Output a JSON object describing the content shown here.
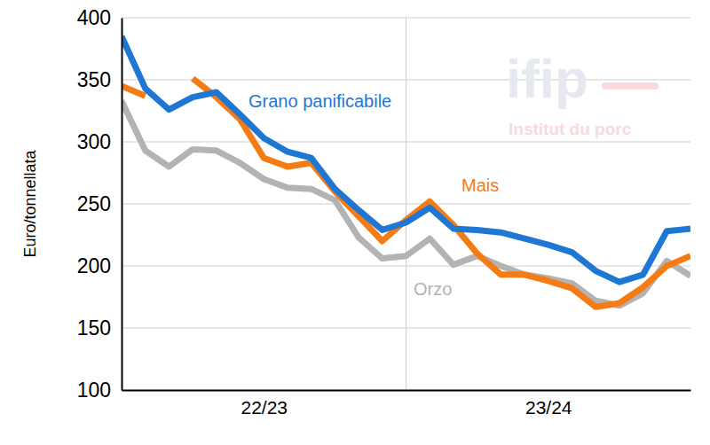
{
  "chart_data": {
    "type": "line",
    "y_label": "Euro/tonnellata",
    "categories": [
      null,
      null,
      null,
      null,
      null,
      null,
      "22/23",
      null,
      null,
      null,
      null,
      null,
      null,
      null,
      null,
      null,
      null,
      null,
      "23/24",
      null,
      null,
      null,
      null,
      null,
      null
    ],
    "series": [
      {
        "name": "Grano panificabile",
        "color": "#1f77d4",
        "values": [
          385,
          343,
          326,
          336,
          340,
          322,
          303,
          292,
          287,
          262,
          245,
          229,
          235,
          247,
          230,
          229,
          227,
          222,
          217,
          211,
          196,
          187,
          193,
          228,
          230
        ]
      },
      {
        "name": "Mais",
        "color": "#f57c14",
        "values": [
          345,
          337,
          null,
          351,
          336,
          318,
          287,
          280,
          283,
          260,
          240,
          220,
          237,
          252,
          233,
          210,
          193,
          193,
          188,
          182,
          167,
          170,
          183,
          200,
          208
        ]
      },
      {
        "name": "Orzo",
        "color": "#b3b3b3",
        "values": [
          333,
          293,
          280,
          294,
          293,
          283,
          270,
          263,
          262,
          253,
          223,
          206,
          208,
          222,
          201,
          208,
          200,
          193,
          190,
          186,
          172,
          168,
          178,
          204,
          192
        ]
      }
    ],
    "ylim": [
      100,
      400
    ],
    "yticks": [
      100,
      150,
      200,
      250,
      300,
      350,
      400
    ],
    "grid": true,
    "annotations": [
      "ifip",
      "Institut du porc"
    ]
  }
}
